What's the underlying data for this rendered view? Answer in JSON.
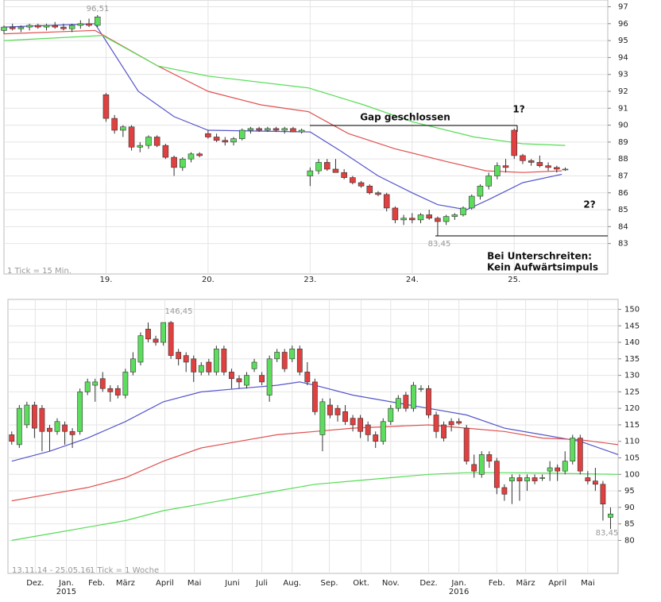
{
  "chart_data": [
    {
      "type": "candlestick",
      "up_color": "#5ddd5d",
      "down_color": "#e04040",
      "grid": true,
      "xlim": [
        0,
        71
      ],
      "ylim": [
        81.2,
        97.4
      ],
      "yticks": [
        83,
        84,
        85,
        86,
        87,
        88,
        89,
        90,
        91,
        92,
        93,
        94,
        95,
        96,
        97
      ],
      "xticks": [
        {
          "value": 12,
          "label": "19."
        },
        {
          "value": 24,
          "label": "20."
        },
        {
          "value": 36,
          "label": "23."
        },
        {
          "value": 48,
          "label": "24."
        },
        {
          "value": 60,
          "label": "25."
        }
      ],
      "ohlc": [
        [
          95.6,
          95.9,
          95.4,
          95.8
        ],
        [
          95.8,
          96.0,
          95.6,
          95.7
        ],
        [
          95.7,
          95.9,
          95.5,
          95.8
        ],
        [
          95.8,
          96.0,
          95.6,
          95.9
        ],
        [
          95.9,
          96.0,
          95.7,
          95.8
        ],
        [
          95.8,
          96.0,
          95.6,
          95.9
        ],
        [
          95.9,
          96.1,
          95.7,
          95.8
        ],
        [
          95.8,
          96.0,
          95.6,
          95.7
        ],
        [
          95.7,
          96.0,
          95.5,
          95.9
        ],
        [
          95.9,
          96.2,
          95.7,
          96.0
        ],
        [
          96.0,
          96.3,
          95.8,
          95.9
        ],
        [
          95.9,
          96.51,
          95.8,
          96.4
        ],
        [
          91.8,
          91.9,
          90.2,
          90.4
        ],
        [
          90.4,
          90.6,
          89.5,
          89.7
        ],
        [
          89.7,
          90.0,
          89.3,
          89.9
        ],
        [
          89.9,
          90.0,
          88.5,
          88.7
        ],
        [
          88.7,
          89.0,
          88.4,
          88.8
        ],
        [
          88.8,
          89.4,
          88.6,
          89.3
        ],
        [
          89.3,
          89.4,
          88.7,
          88.8
        ],
        [
          88.8,
          88.9,
          88.0,
          88.1
        ],
        [
          88.1,
          88.2,
          87.0,
          87.5
        ],
        [
          87.5,
          88.1,
          87.3,
          88.0
        ],
        [
          88.0,
          88.4,
          87.8,
          88.3
        ],
        [
          88.3,
          88.4,
          88.1,
          88.2
        ],
        [
          89.5,
          89.7,
          89.2,
          89.3
        ],
        [
          89.3,
          89.5,
          89.0,
          89.1
        ],
        [
          89.1,
          89.3,
          88.8,
          89.0
        ],
        [
          89.0,
          89.3,
          88.8,
          89.2
        ],
        [
          89.2,
          89.8,
          89.1,
          89.7
        ],
        [
          89.7,
          89.9,
          89.5,
          89.8
        ],
        [
          89.8,
          89.9,
          89.6,
          89.7
        ],
        [
          89.7,
          89.9,
          89.6,
          89.8
        ],
        [
          89.8,
          89.9,
          89.6,
          89.7
        ],
        [
          89.7,
          89.9,
          89.5,
          89.8
        ],
        [
          89.8,
          89.9,
          89.6,
          89.6
        ],
        [
          89.6,
          89.8,
          89.5,
          89.7
        ],
        [
          87.0,
          87.5,
          86.4,
          87.3
        ],
        [
          87.3,
          88.0,
          87.1,
          87.8
        ],
        [
          87.8,
          88.0,
          87.3,
          87.4
        ],
        [
          87.4,
          88.0,
          87.2,
          87.2
        ],
        [
          87.2,
          87.4,
          86.8,
          86.9
        ],
        [
          86.9,
          87.0,
          86.5,
          86.6
        ],
        [
          86.6,
          86.7,
          86.3,
          86.4
        ],
        [
          86.4,
          86.5,
          85.9,
          86.0
        ],
        [
          86.0,
          86.1,
          85.8,
          85.9
        ],
        [
          85.9,
          86.0,
          84.9,
          85.1
        ],
        [
          85.1,
          85.2,
          84.2,
          84.4
        ],
        [
          84.4,
          84.7,
          84.1,
          84.5
        ],
        [
          84.5,
          84.8,
          84.2,
          84.4
        ],
        [
          84.4,
          84.8,
          84.2,
          84.7
        ],
        [
          84.7,
          85.0,
          84.4,
          84.5
        ],
        [
          84.5,
          84.6,
          83.45,
          84.3
        ],
        [
          84.3,
          84.7,
          84.1,
          84.6
        ],
        [
          84.6,
          84.8,
          84.4,
          84.7
        ],
        [
          84.7,
          85.2,
          84.6,
          85.1
        ],
        [
          85.1,
          85.9,
          85.0,
          85.8
        ],
        [
          85.8,
          86.5,
          85.6,
          86.4
        ],
        [
          86.4,
          87.2,
          86.2,
          87.0
        ],
        [
          87.0,
          87.8,
          86.8,
          87.6
        ],
        [
          87.6,
          88.0,
          87.2,
          87.5
        ],
        [
          89.7,
          89.8,
          88.0,
          88.2
        ],
        [
          88.2,
          88.3,
          87.7,
          87.9
        ],
        [
          87.9,
          88.0,
          87.6,
          87.8
        ],
        [
          87.8,
          88.2,
          87.5,
          87.6
        ],
        [
          87.6,
          87.8,
          87.3,
          87.5
        ],
        [
          87.5,
          87.6,
          87.2,
          87.4
        ],
        [
          87.4,
          87.5,
          87.3,
          87.4
        ]
      ],
      "series": [
        {
          "color": "#5555cc",
          "x": [
            0,
            10.7,
            15.8,
            20,
            24,
            36,
            39.5,
            44,
            48,
            51,
            54.4,
            57,
            61,
            65.6
          ],
          "values": [
            95.8,
            96,
            92,
            90.5,
            89.7,
            89.6,
            88.5,
            87,
            86,
            85.3,
            85,
            85.6,
            86.6,
            87.1
          ]
        },
        {
          "color": "#e05050",
          "x": [
            0,
            10.7,
            18.1,
            24,
            30.2,
            35.8,
            40.5,
            46,
            51.6,
            56.7,
            61,
            65.6
          ],
          "values": [
            95.4,
            95.6,
            93.5,
            92,
            91.2,
            90.8,
            89.5,
            88.6,
            87.9,
            87.3,
            87.2,
            87.3
          ]
        },
        {
          "color": "#55dd55",
          "x": [
            0,
            11.6,
            18.1,
            24,
            35.8,
            42.3,
            48,
            55.3,
            61,
            66.0
          ],
          "values": [
            95,
            95.3,
            93.5,
            92.9,
            92.2,
            91.2,
            90.2,
            89.3,
            88.9,
            88.8
          ]
        }
      ],
      "annotations": [
        "96,51",
        "Gap geschlossen",
        "1?",
        "2?",
        "83,45",
        "Bei Unterschreiten:",
        "Kein Aufwärtsimpuls",
        "1 Tick = 15 Min."
      ]
    },
    {
      "type": "candlestick",
      "up_color": "#5ddd5d",
      "down_color": "#e04040",
      "grid": true,
      "xlim": [
        -0.5,
        80
      ],
      "ylim": [
        70,
        153
      ],
      "yticks": [
        80,
        85,
        90,
        95,
        100,
        105,
        110,
        115,
        120,
        125,
        130,
        135,
        140,
        145,
        150
      ],
      "xticks": [
        {
          "value": 3.1,
          "label": "Dez."
        },
        {
          "value": 7.2,
          "label": "Jan."
        },
        {
          "value": 11.2,
          "label": "Feb."
        },
        {
          "value": 15,
          "label": "März"
        },
        {
          "value": 20.2,
          "label": "April"
        },
        {
          "value": 24.1,
          "label": "Mai"
        },
        {
          "value": 29.1,
          "label": "Juni"
        },
        {
          "value": 33,
          "label": "Juli"
        },
        {
          "value": 37,
          "label": "Aug."
        },
        {
          "value": 41.9,
          "label": "Sep."
        },
        {
          "value": 46.1,
          "label": "Okt."
        },
        {
          "value": 50,
          "label": "Nov."
        },
        {
          "value": 55,
          "label": "Dez."
        },
        {
          "value": 59,
          "label": "Jan."
        },
        {
          "value": 64,
          "label": "Feb."
        },
        {
          "value": 67.8,
          "label": "März"
        },
        {
          "value": 72,
          "label": "April"
        },
        {
          "value": 76,
          "label": "Mai"
        }
      ],
      "year_labels": [
        {
          "value": 7.2,
          "label": "2015"
        },
        {
          "value": 59,
          "label": "2016"
        }
      ],
      "ohlc": [
        [
          112,
          113,
          109,
          110
        ],
        [
          109,
          121,
          108,
          120
        ],
        [
          115,
          122,
          114,
          121
        ],
        [
          121,
          122,
          111,
          114
        ],
        [
          120,
          121,
          107,
          113
        ],
        [
          114,
          115,
          107,
          113
        ],
        [
          113,
          117,
          112,
          116
        ],
        [
          115,
          116,
          109,
          113
        ],
        [
          113,
          114,
          108,
          112
        ],
        [
          113,
          126,
          112,
          125
        ],
        [
          125,
          129,
          124,
          128
        ],
        [
          127,
          129,
          122,
          128
        ],
        [
          129,
          131,
          125,
          126
        ],
        [
          126,
          127,
          122,
          125
        ],
        [
          126,
          127,
          123,
          124
        ],
        [
          124,
          132,
          123,
          131
        ],
        [
          131,
          137,
          130,
          135
        ],
        [
          134,
          143,
          133,
          142
        ],
        [
          144,
          146,
          140,
          141
        ],
        [
          141,
          142,
          139,
          140
        ],
        [
          140,
          146,
          139,
          146
        ],
        [
          146,
          146.45,
          135,
          136
        ],
        [
          137,
          138,
          133,
          135
        ],
        [
          136,
          137,
          131,
          134
        ],
        [
          135,
          136,
          128,
          131
        ],
        [
          131,
          134,
          130,
          133
        ],
        [
          134,
          135,
          130,
          131
        ],
        [
          131,
          139,
          130,
          138
        ],
        [
          138,
          139,
          130,
          131
        ],
        [
          131,
          132,
          126,
          129
        ],
        [
          129,
          130,
          126,
          128
        ],
        [
          127,
          131,
          126,
          130
        ],
        [
          132,
          135,
          131,
          134
        ],
        [
          130,
          131,
          127,
          128
        ],
        [
          124,
          136,
          122,
          135
        ],
        [
          135,
          138,
          134,
          137
        ],
        [
          137,
          138,
          131,
          132
        ],
        [
          135,
          139,
          134,
          138
        ],
        [
          138,
          139,
          130,
          131
        ],
        [
          131,
          134,
          127,
          128
        ],
        [
          128,
          129,
          118,
          119
        ],
        [
          112,
          123,
          107,
          122
        ],
        [
          121,
          123,
          117,
          118
        ],
        [
          120,
          121,
          116,
          118
        ],
        [
          119,
          121,
          115,
          116
        ],
        [
          117,
          118,
          113,
          115
        ],
        [
          117,
          118,
          111,
          113
        ],
        [
          115,
          116,
          110,
          112
        ],
        [
          112,
          113,
          108,
          110
        ],
        [
          110,
          117,
          109,
          116
        ],
        [
          116,
          121,
          115,
          120
        ],
        [
          120,
          124,
          119,
          123
        ],
        [
          124,
          125,
          119,
          120
        ],
        [
          120,
          128,
          119,
          127
        ],
        [
          126,
          127,
          125,
          126
        ],
        [
          126,
          127,
          117,
          118
        ],
        [
          118,
          119,
          111,
          113
        ],
        [
          115,
          116,
          110,
          111
        ],
        [
          116,
          117,
          113,
          115
        ],
        [
          116,
          117,
          115,
          115.5
        ],
        [
          114,
          115,
          103,
          104
        ],
        [
          103,
          106,
          99,
          101
        ],
        [
          100,
          107,
          99,
          106
        ],
        [
          106,
          107,
          102,
          104
        ],
        [
          104,
          105,
          94,
          96
        ],
        [
          96,
          97,
          92,
          94
        ],
        [
          98,
          100,
          91,
          99
        ],
        [
          99,
          100,
          92,
          98
        ],
        [
          98,
          100,
          95,
          99
        ],
        [
          99,
          100,
          97,
          98
        ],
        [
          99,
          100,
          98,
          99
        ],
        [
          101,
          104,
          98,
          102
        ],
        [
          102,
          103,
          98,
          101
        ],
        [
          101,
          107,
          100,
          104
        ],
        [
          104,
          112,
          103,
          111
        ],
        [
          111,
          112,
          100,
          101
        ],
        [
          99,
          101,
          97,
          98
        ],
        [
          98,
          102,
          95,
          97
        ],
        [
          97,
          98,
          86,
          91
        ],
        [
          87,
          90,
          83.45,
          88
        ]
      ],
      "series": [
        {
          "color": "#5555cc",
          "x": [
            0,
            5,
            10,
            15,
            20,
            25,
            30,
            35,
            38,
            40,
            45,
            50,
            55,
            60,
            65,
            70,
            75,
            80
          ],
          "values": [
            104,
            107,
            111,
            116,
            122,
            125,
            126,
            127,
            128,
            127,
            124,
            122,
            120,
            118,
            114,
            112,
            110,
            106
          ]
        },
        {
          "color": "#e05050",
          "x": [
            0,
            5,
            10,
            15,
            20,
            25,
            30,
            35,
            40,
            45,
            50,
            55,
            60,
            65,
            70,
            75,
            80
          ],
          "values": [
            92,
            94,
            96,
            99,
            104,
            108,
            110,
            112,
            113,
            114,
            114.5,
            115,
            114,
            113,
            111,
            110.5,
            109
          ]
        },
        {
          "color": "#55dd55",
          "x": [
            0,
            5,
            10,
            15,
            20,
            25,
            30,
            35,
            40,
            45,
            50,
            55,
            60,
            65,
            70,
            75,
            80
          ],
          "values": [
            80,
            82,
            84,
            86,
            89,
            91,
            93,
            95,
            97,
            98,
            99,
            100,
            100.5,
            100.5,
            100.4,
            100.2,
            100
          ]
        }
      ],
      "annotations": [
        "146,45",
        "83,45",
        "13.11.14 - 25.05.16",
        "1 Tick = 1 Woche"
      ]
    }
  ]
}
